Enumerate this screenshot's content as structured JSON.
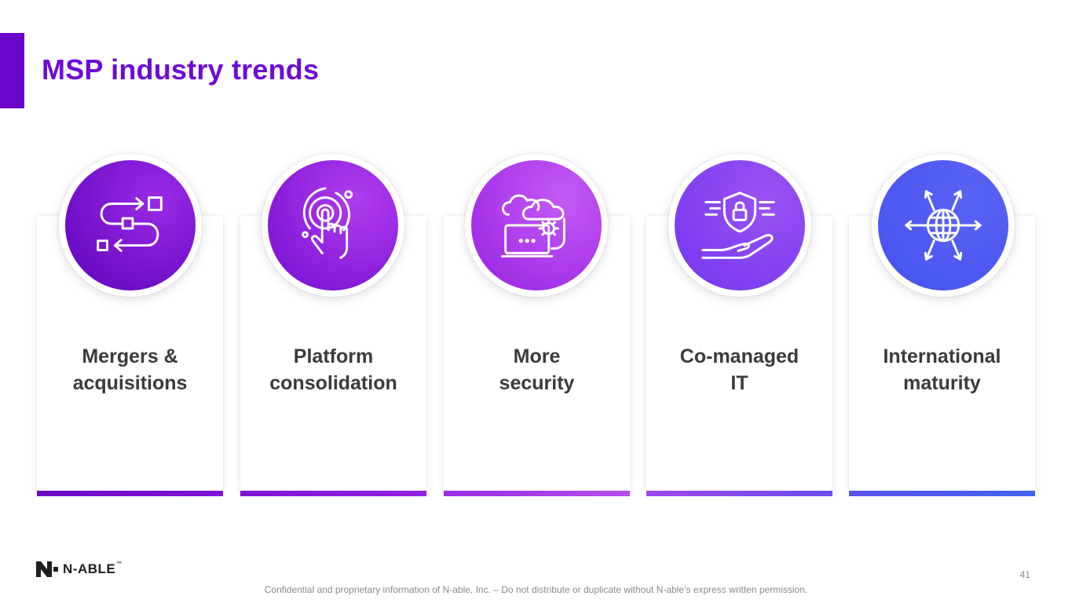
{
  "slide": {
    "title": "MSP industry trends",
    "page_number": "41",
    "footer": "Confidential and proprietary information of N-able, Inc. – Do not distribute or duplicate without N-able’s express written permission.",
    "logo_text": "N-ABLE",
    "logo_tm": "™"
  },
  "colors": {
    "title": "#6d0bd6",
    "accent_bar": "#6a06c9",
    "label_text": "#3b3b3b"
  },
  "cards": [
    {
      "line1": "Mergers &",
      "line2": "acquisitions",
      "icon": "workflow-arrows-icon",
      "color_start": "#6a0bc4",
      "color_end": "#8b1fe0"
    },
    {
      "line1": "Platform",
      "line2": "consolidation",
      "icon": "touch-target-icon",
      "color_start": "#8116d6",
      "color_end": "#a32ae8"
    },
    {
      "line1": "More",
      "line2": "security",
      "icon": "cloud-settings-icon",
      "color_start": "#a22ce6",
      "color_end": "#b848f2"
    },
    {
      "line1": "Co-managed",
      "line2": "IT",
      "icon": "shield-hand-icon",
      "color_start": "#8a3cf0",
      "color_end": "#7048f4"
    },
    {
      "line1": "International",
      "line2": "maturity",
      "icon": "globe-arrows-icon",
      "color_start": "#5a4bf2",
      "color_end": "#3d5ef6"
    }
  ]
}
